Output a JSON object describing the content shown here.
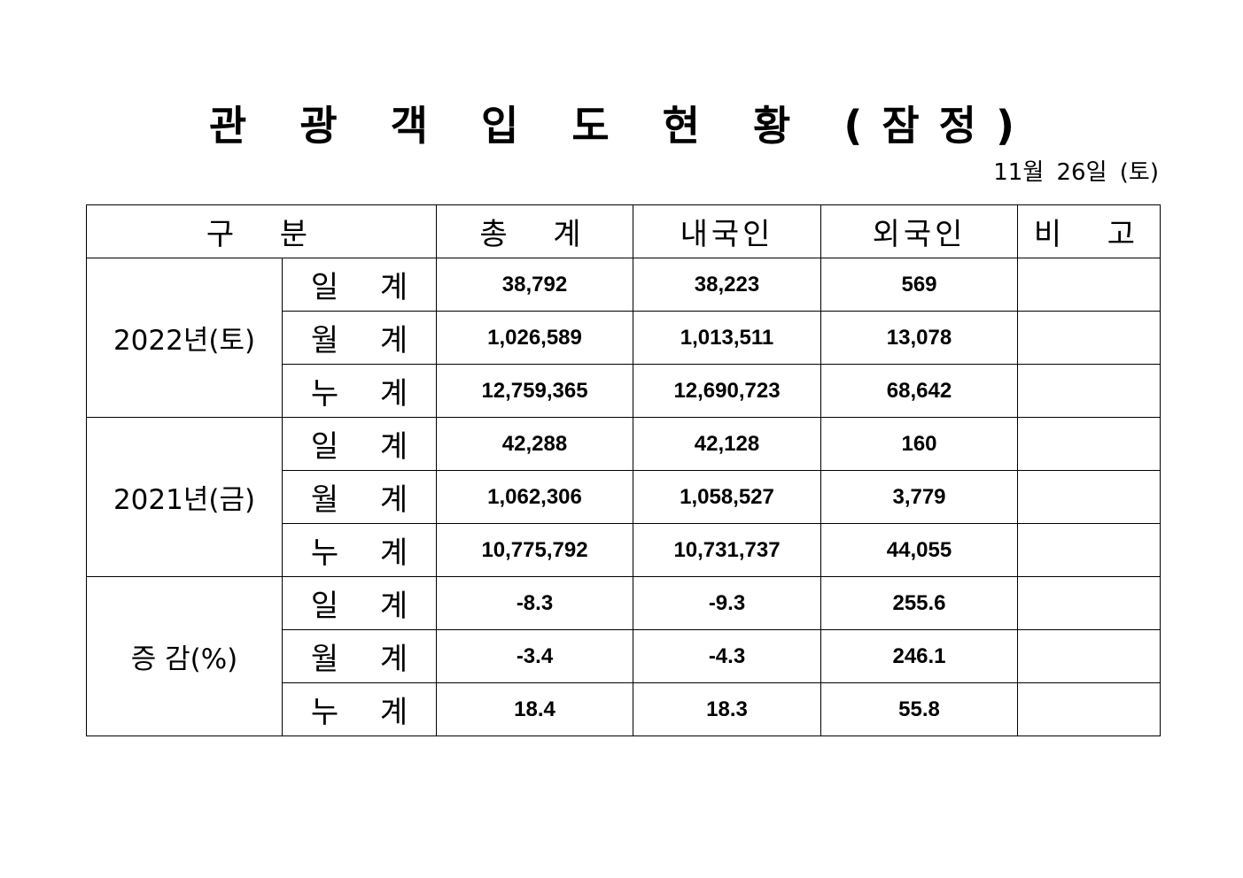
{
  "title": "관 광 객 입 도 현 황 (잠정)",
  "date": "11월 26일 (토)",
  "header": {
    "category": "구  분",
    "total": "총  계",
    "domestic": "내국인",
    "foreign": "외국인",
    "remarks": "비  고"
  },
  "groups": [
    {
      "label": "2022년(토)",
      "rows": [
        {
          "sub": "일 계",
          "total": "38,792",
          "domestic": "38,223",
          "foreign": "569",
          "remarks": ""
        },
        {
          "sub": "월 계",
          "total": "1,026,589",
          "domestic": "1,013,511",
          "foreign": "13,078",
          "remarks": ""
        },
        {
          "sub": "누 계",
          "total": "12,759,365",
          "domestic": "12,690,723",
          "foreign": "68,642",
          "remarks": ""
        }
      ]
    },
    {
      "label": "2021년(금)",
      "rows": [
        {
          "sub": "일 계",
          "total": "42,288",
          "domestic": "42,128",
          "foreign": "160",
          "remarks": ""
        },
        {
          "sub": "월 계",
          "total": "1,062,306",
          "domestic": "1,058,527",
          "foreign": "3,779",
          "remarks": ""
        },
        {
          "sub": "누 계",
          "total": "10,775,792",
          "domestic": "10,731,737",
          "foreign": "44,055",
          "remarks": ""
        }
      ]
    },
    {
      "label": "증 감(%)",
      "rows": [
        {
          "sub": "일 계",
          "total": "-8.3",
          "domestic": "-9.3",
          "foreign": "255.6",
          "remarks": ""
        },
        {
          "sub": "월 계",
          "total": "-3.4",
          "domestic": "-4.3",
          "foreign": "246.1",
          "remarks": ""
        },
        {
          "sub": "누 계",
          "total": "18.4",
          "domestic": "18.3",
          "foreign": "55.8",
          "remarks": ""
        }
      ]
    }
  ]
}
